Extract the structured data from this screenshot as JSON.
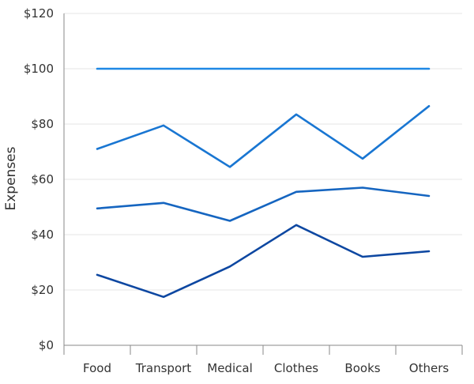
{
  "chart_data": {
    "type": "line",
    "title": "",
    "xlabel": "",
    "ylabel": "Expenses",
    "categories": [
      "Food",
      "Transport",
      "Medical",
      "Clothes",
      "Books",
      "Others"
    ],
    "ylim": [
      0,
      120
    ],
    "yticks": [
      0,
      20,
      40,
      60,
      80,
      100,
      120
    ],
    "ytick_labels": [
      "$0",
      "$20",
      "$40",
      "$60",
      "$80",
      "$100",
      "$120"
    ],
    "grid": true,
    "series": [
      {
        "values": [
          100,
          100,
          100,
          100,
          100,
          100
        ],
        "color": "#1e88e5"
      },
      {
        "values": [
          71,
          79.5,
          64.5,
          83.5,
          67.5,
          86.5
        ],
        "color": "#1976d2"
      },
      {
        "values": [
          49.5,
          51.5,
          45,
          55.5,
          57,
          54
        ],
        "color": "#1565c0"
      },
      {
        "values": [
          25.5,
          17.5,
          28.5,
          43.5,
          32,
          34
        ],
        "color": "#0d47a1"
      }
    ]
  }
}
